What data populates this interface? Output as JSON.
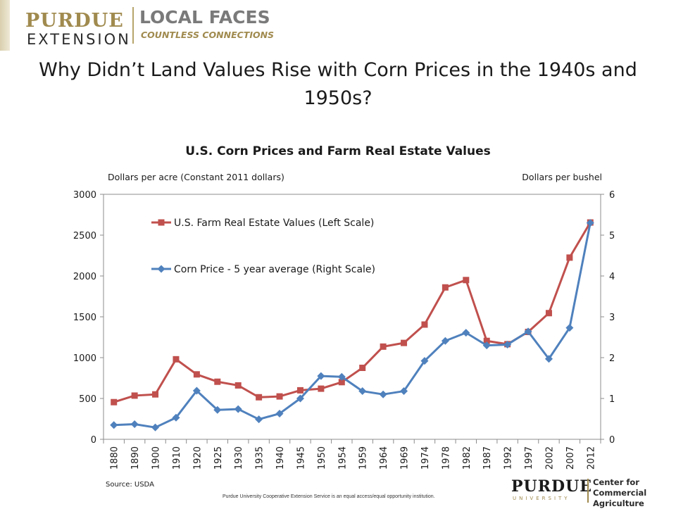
{
  "header": {
    "purdue": "PURDUE",
    "extension": "EXTENSION",
    "local_faces": "LOCAL FACES",
    "countless": "COUNTLESS CONNECTIONS"
  },
  "slide_title": "Why Didn’t Land Values Rise with Corn Prices in the 1940s and 1950s?",
  "chart_data": {
    "type": "line",
    "title": "U.S. Corn Prices and Farm Real Estate Values",
    "ylabel": "Dollars per acre (Constant 2011 dollars)",
    "y2label": "Dollars per bushel",
    "ylim": [
      0,
      3000
    ],
    "y2lim": [
      0,
      6
    ],
    "yticks": [
      "0",
      "500",
      "1000",
      "1500",
      "2000",
      "2500",
      "3000"
    ],
    "y2ticks": [
      "0",
      "1",
      "2",
      "3",
      "4",
      "5",
      "6"
    ],
    "categories": [
      "1880",
      "1890",
      "1900",
      "1910",
      "1920",
      "1925",
      "1930",
      "1935",
      "1940",
      "1945",
      "1950",
      "1954",
      "1959",
      "1964",
      "1969",
      "1974",
      "1978",
      "1982",
      "1987",
      "1992",
      "1997",
      "2002",
      "2007",
      "2012"
    ],
    "grid": false,
    "legend": "top-left",
    "series": [
      {
        "name": "U.S. Farm Real Estate Values (Left Scale)",
        "axis": "left",
        "color": "#c0504d",
        "marker": "square",
        "values": [
          455,
          535,
          550,
          980,
          795,
          705,
          660,
          515,
          525,
          600,
          620,
          700,
          875,
          1135,
          1180,
          1405,
          1860,
          1950,
          1205,
          1165,
          1315,
          1545,
          2225,
          2655
        ]
      },
      {
        "name": "Corn Price - 5 year average (Right Scale)",
        "axis": "right",
        "color": "#4f81bd",
        "marker": "diamond",
        "values": [
          0.35,
          0.37,
          0.29,
          0.53,
          1.19,
          0.72,
          0.74,
          0.49,
          0.63,
          1.0,
          1.55,
          1.53,
          1.18,
          1.1,
          1.18,
          1.92,
          2.41,
          2.61,
          2.3,
          2.32,
          2.64,
          1.97,
          2.73,
          5.3
        ]
      }
    ],
    "source": "Source: USDA"
  },
  "footer": {
    "note": "Purdue University Cooperative Extension Service is an equal access/equal opportunity institution.",
    "purdue": "PURDUE",
    "university": "UNIVERSITY",
    "center_line1": "Center for",
    "center_line2": "Commercial Agriculture"
  }
}
